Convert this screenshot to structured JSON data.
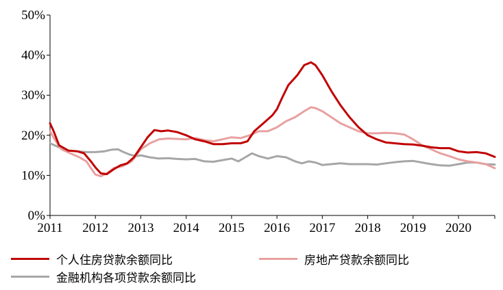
{
  "chart_data": {
    "type": "line",
    "title": "",
    "xlabel": "",
    "ylabel": "",
    "ylim": [
      0,
      50
    ],
    "xlim": [
      2011,
      2020.8
    ],
    "yticks": [
      "0%",
      "10%",
      "20%",
      "30%",
      "40%",
      "50%"
    ],
    "xticks": [
      "2011",
      "2012",
      "2013",
      "2014",
      "2015",
      "2016",
      "2017",
      "2018",
      "2019",
      "2020"
    ],
    "grid": false,
    "legend_position": "bottom",
    "series": [
      {
        "name": "个人住房贷款余额同比",
        "color": "#c00000",
        "points": [
          [
            2011.0,
            23.0
          ],
          [
            2011.08,
            21.0
          ],
          [
            2011.2,
            17.5
          ],
          [
            2011.4,
            16.2
          ],
          [
            2011.6,
            16.0
          ],
          [
            2011.75,
            15.5
          ],
          [
            2011.9,
            13.5
          ],
          [
            2012.0,
            12.0
          ],
          [
            2012.12,
            10.5
          ],
          [
            2012.25,
            10.3
          ],
          [
            2012.4,
            11.5
          ],
          [
            2012.55,
            12.5
          ],
          [
            2012.7,
            13.0
          ],
          [
            2012.85,
            14.5
          ],
          [
            2013.0,
            17.0
          ],
          [
            2013.15,
            19.5
          ],
          [
            2013.3,
            21.3
          ],
          [
            2013.45,
            21.0
          ],
          [
            2013.6,
            21.2
          ],
          [
            2013.8,
            20.8
          ],
          [
            2014.0,
            20.0
          ],
          [
            2014.2,
            19.0
          ],
          [
            2014.4,
            18.5
          ],
          [
            2014.6,
            17.8
          ],
          [
            2014.8,
            17.8
          ],
          [
            2015.0,
            18.0
          ],
          [
            2015.2,
            18.0
          ],
          [
            2015.35,
            18.5
          ],
          [
            2015.5,
            21.0
          ],
          [
            2015.7,
            23.0
          ],
          [
            2015.9,
            25.0
          ],
          [
            2016.0,
            26.5
          ],
          [
            2016.1,
            29.0
          ],
          [
            2016.25,
            32.5
          ],
          [
            2016.45,
            35.0
          ],
          [
            2016.6,
            37.5
          ],
          [
            2016.75,
            38.2
          ],
          [
            2016.85,
            37.5
          ],
          [
            2017.0,
            35.0
          ],
          [
            2017.2,
            31.0
          ],
          [
            2017.4,
            27.5
          ],
          [
            2017.6,
            24.5
          ],
          [
            2017.8,
            22.0
          ],
          [
            2018.0,
            20.0
          ],
          [
            2018.2,
            19.0
          ],
          [
            2018.4,
            18.2
          ],
          [
            2018.6,
            18.0
          ],
          [
            2018.8,
            17.8
          ],
          [
            2019.0,
            17.7
          ],
          [
            2019.2,
            17.4
          ],
          [
            2019.4,
            17.0
          ],
          [
            2019.6,
            16.8
          ],
          [
            2019.8,
            16.8
          ],
          [
            2020.0,
            16.0
          ],
          [
            2020.2,
            15.7
          ],
          [
            2020.4,
            15.8
          ],
          [
            2020.6,
            15.5
          ],
          [
            2020.8,
            14.6
          ]
        ]
      },
      {
        "name": "房地产贷款余额同比",
        "color": "#e8a0a0",
        "points": [
          [
            2011.0,
            21.0
          ],
          [
            2011.1,
            19.0
          ],
          [
            2011.25,
            16.5
          ],
          [
            2011.45,
            15.5
          ],
          [
            2011.65,
            14.5
          ],
          [
            2011.8,
            13.5
          ],
          [
            2011.92,
            11.5
          ],
          [
            2012.0,
            10.2
          ],
          [
            2012.12,
            9.8
          ],
          [
            2012.25,
            10.5
          ],
          [
            2012.4,
            11.8
          ],
          [
            2012.6,
            12.3
          ],
          [
            2012.8,
            13.5
          ],
          [
            2013.0,
            16.5
          ],
          [
            2013.2,
            18.0
          ],
          [
            2013.4,
            19.0
          ],
          [
            2013.6,
            19.2
          ],
          [
            2013.8,
            19.1
          ],
          [
            2014.0,
            19.0
          ],
          [
            2014.2,
            19.3
          ],
          [
            2014.4,
            18.8
          ],
          [
            2014.6,
            18.5
          ],
          [
            2014.8,
            19.0
          ],
          [
            2015.0,
            19.5
          ],
          [
            2015.2,
            19.3
          ],
          [
            2015.4,
            20.0
          ],
          [
            2015.6,
            21.0
          ],
          [
            2015.8,
            21.0
          ],
          [
            2016.0,
            22.0
          ],
          [
            2016.2,
            23.5
          ],
          [
            2016.4,
            24.5
          ],
          [
            2016.6,
            26.0
          ],
          [
            2016.75,
            27.0
          ],
          [
            2016.85,
            26.8
          ],
          [
            2017.0,
            26.0
          ],
          [
            2017.2,
            24.5
          ],
          [
            2017.4,
            23.0
          ],
          [
            2017.6,
            22.0
          ],
          [
            2017.8,
            21.0
          ],
          [
            2018.0,
            20.5
          ],
          [
            2018.2,
            20.5
          ],
          [
            2018.4,
            20.6
          ],
          [
            2018.6,
            20.5
          ],
          [
            2018.8,
            20.2
          ],
          [
            2019.0,
            19.0
          ],
          [
            2019.2,
            17.5
          ],
          [
            2019.4,
            16.5
          ],
          [
            2019.6,
            15.5
          ],
          [
            2019.8,
            14.8
          ],
          [
            2020.0,
            14.0
          ],
          [
            2020.2,
            13.5
          ],
          [
            2020.4,
            13.2
          ],
          [
            2020.6,
            12.8
          ],
          [
            2020.8,
            11.8
          ]
        ]
      },
      {
        "name": "金融机构各项贷款余额同比",
        "color": "#a6a6a6",
        "points": [
          [
            2011.0,
            18.0
          ],
          [
            2011.2,
            17.0
          ],
          [
            2011.4,
            16.2
          ],
          [
            2011.6,
            16.0
          ],
          [
            2011.8,
            15.8
          ],
          [
            2012.0,
            15.8
          ],
          [
            2012.2,
            16.0
          ],
          [
            2012.35,
            16.4
          ],
          [
            2012.5,
            16.5
          ],
          [
            2012.6,
            15.9
          ],
          [
            2012.75,
            15.2
          ],
          [
            2012.9,
            14.8
          ],
          [
            2013.0,
            15.0
          ],
          [
            2013.2,
            14.5
          ],
          [
            2013.4,
            14.2
          ],
          [
            2013.6,
            14.3
          ],
          [
            2013.8,
            14.1
          ],
          [
            2014.0,
            14.0
          ],
          [
            2014.2,
            14.1
          ],
          [
            2014.4,
            13.5
          ],
          [
            2014.6,
            13.4
          ],
          [
            2014.8,
            13.8
          ],
          [
            2015.0,
            14.2
          ],
          [
            2015.15,
            13.5
          ],
          [
            2015.3,
            14.5
          ],
          [
            2015.45,
            15.5
          ],
          [
            2015.6,
            14.8
          ],
          [
            2015.8,
            14.2
          ],
          [
            2016.0,
            14.8
          ],
          [
            2016.2,
            14.5
          ],
          [
            2016.4,
            13.5
          ],
          [
            2016.55,
            13.0
          ],
          [
            2016.7,
            13.5
          ],
          [
            2016.85,
            13.2
          ],
          [
            2017.0,
            12.6
          ],
          [
            2017.2,
            12.8
          ],
          [
            2017.4,
            13.0
          ],
          [
            2017.6,
            12.8
          ],
          [
            2017.8,
            12.8
          ],
          [
            2018.0,
            12.8
          ],
          [
            2018.2,
            12.7
          ],
          [
            2018.4,
            13.0
          ],
          [
            2018.6,
            13.3
          ],
          [
            2018.8,
            13.5
          ],
          [
            2019.0,
            13.6
          ],
          [
            2019.2,
            13.2
          ],
          [
            2019.4,
            12.8
          ],
          [
            2019.6,
            12.5
          ],
          [
            2019.8,
            12.4
          ],
          [
            2020.0,
            12.8
          ],
          [
            2020.2,
            13.2
          ],
          [
            2020.4,
            13.2
          ],
          [
            2020.6,
            12.8
          ],
          [
            2020.8,
            12.7
          ]
        ]
      }
    ]
  }
}
